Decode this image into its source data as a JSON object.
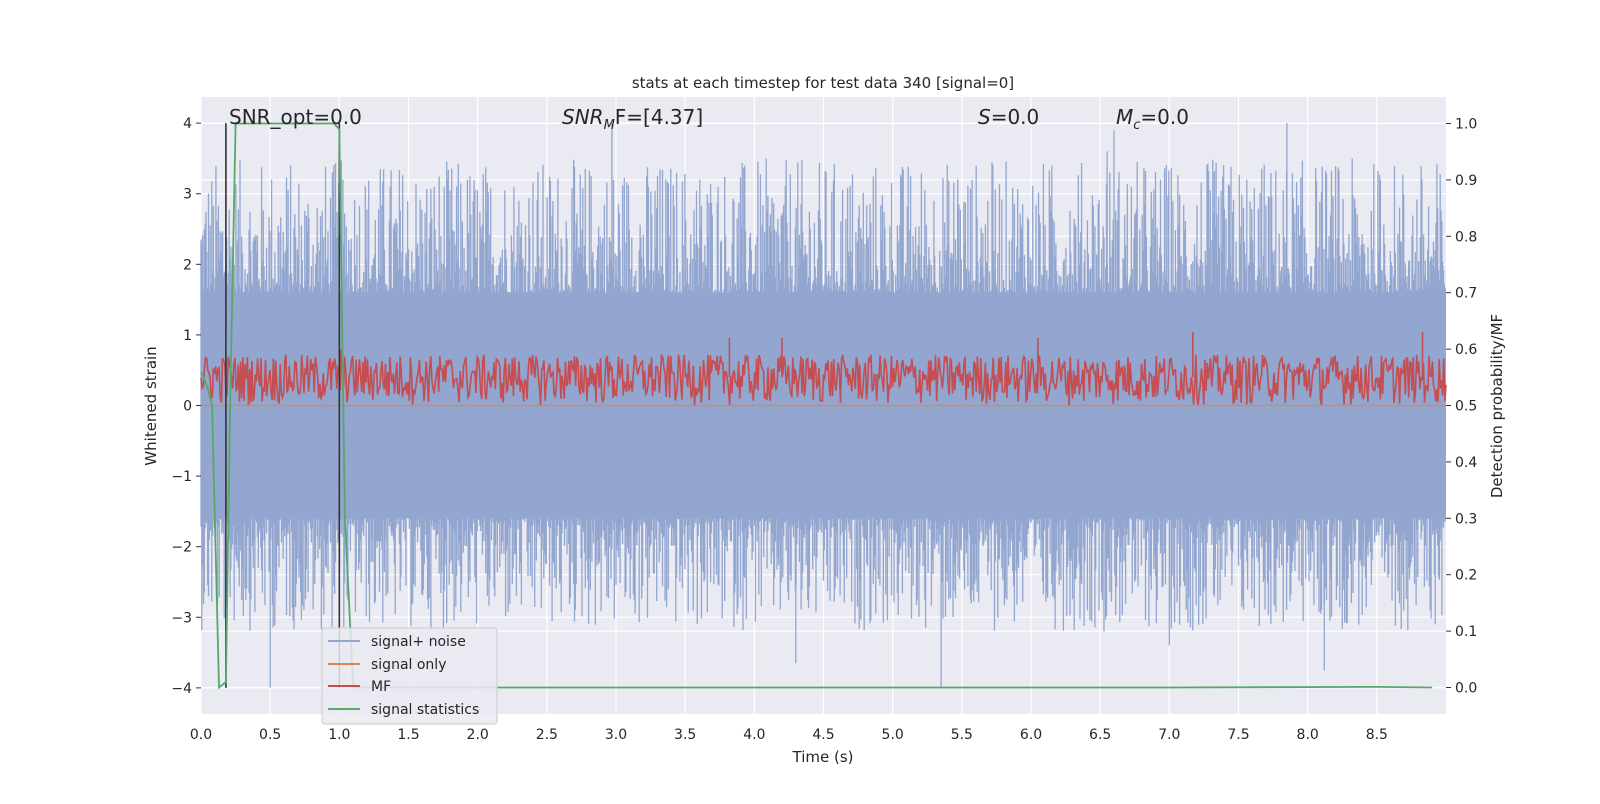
{
  "chart_data": {
    "type": "line",
    "title": "stats at each timestep for test data 340 [signal=0]",
    "xlabel": "Time (s)",
    "ylabel": "Whitened strain",
    "y2label": "Detection probability/MF",
    "xlim": [
      0.0,
      9.0
    ],
    "ylim": [
      -4.37,
      4.37
    ],
    "y2lim": [
      -0.047,
      1.047
    ],
    "x_ticks": [
      "0.0",
      "0.5",
      "1.0",
      "1.5",
      "2.0",
      "2.5",
      "3.0",
      "3.5",
      "4.0",
      "4.5",
      "5.0",
      "5.5",
      "6.0",
      "6.5",
      "7.0",
      "7.5",
      "8.0",
      "8.5"
    ],
    "y_ticks": [
      "4",
      "3",
      "2",
      "1",
      "0",
      "−1",
      "−2",
      "−3",
      "−4"
    ],
    "y2_ticks": [
      "1.0",
      "0.9",
      "0.8",
      "0.7",
      "0.6",
      "0.5",
      "0.4",
      "0.3",
      "0.2",
      "0.1",
      "0.0"
    ],
    "grid": true,
    "legend_position": "lower-left",
    "annotations": {
      "snr_opt": "SNR_opt=0.0",
      "snr_mf_main": "SNR",
      "snr_mf_sub": "M",
      "snr_mf_rest": "F=[4.37]",
      "s_main": "S",
      "s_rest": "=0.0",
      "mc_main": "M",
      "mc_sub": "c",
      "mc_rest": "=0.0"
    },
    "series": [
      {
        "name": "signal+ noise",
        "color": "#92a6cf",
        "style": "noise band",
        "axis": "left",
        "band_ylim": [
          -1.6,
          1.6
        ],
        "peaks": [
          [
            0.95,
            3.3
          ],
          [
            2.97,
            4.0
          ],
          [
            3.3,
            3.25
          ],
          [
            4.3,
            -3.65
          ],
          [
            5.35,
            -4.0
          ],
          [
            5.47,
            3.2
          ],
          [
            6.55,
            3.6
          ],
          [
            6.6,
            3.9
          ],
          [
            7.0,
            -3.4
          ],
          [
            7.85,
            4.0
          ],
          [
            8.12,
            -3.75
          ],
          [
            0.5,
            -4.0
          ]
        ]
      },
      {
        "name": "signal only",
        "color": "#dd8452",
        "style": "flat at 0",
        "axis": "left",
        "x": [
          0.0,
          9.0
        ],
        "y": [
          0.0,
          0.0
        ]
      },
      {
        "name": "MF",
        "color": "#c44e52",
        "style": "noisy band",
        "axis": "right",
        "band_ylim": [
          0.5,
          0.59
        ],
        "peaks": [
          [
            3.82,
            0.62
          ],
          [
            4.2,
            0.62
          ],
          [
            6.05,
            0.62
          ],
          [
            7.17,
            0.63
          ],
          [
            8.83,
            0.63
          ],
          [
            1.01,
            0.6
          ]
        ]
      },
      {
        "name": "signal statistics",
        "color": "#55a868",
        "axis": "right",
        "x": [
          0.0,
          0.05,
          0.08,
          0.13,
          0.18,
          0.21,
          0.25,
          0.4,
          0.7,
          0.96,
          1.0,
          1.04,
          1.1,
          1.5,
          3.0,
          5.0,
          7.0,
          8.5,
          8.9
        ],
        "y": [
          0.56,
          0.53,
          0.5,
          0.0,
          0.01,
          0.5,
          1.0,
          1.0,
          1.0,
          1.0,
          0.99,
          0.3,
          0.0,
          0.0,
          0.0,
          0.0,
          0.0,
          0.001,
          0.0
        ]
      }
    ],
    "vertical_markers": {
      "color": "#333333",
      "x": [
        0.18,
        1.0
      ]
    },
    "colors": {
      "axes_background": "#eaeaf2",
      "grid": "#ffffff"
    }
  }
}
